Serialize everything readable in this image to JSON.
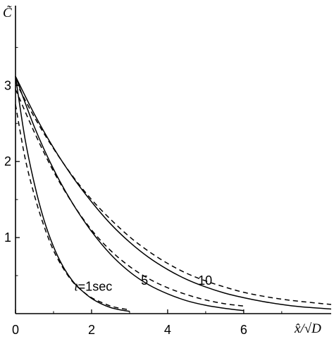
{
  "chart_data": {
    "type": "line",
    "ylabel": "C̃",
    "xlabel": "x̂/√D",
    "xlim": [
      0,
      8.3
    ],
    "ylim": [
      0,
      4.05
    ],
    "xticks": [
      0,
      2,
      4,
      6
    ],
    "xtick_labels": [
      "0",
      "2",
      "4",
      "6"
    ],
    "yticks": [
      1,
      2,
      3
    ],
    "ytick_labels": [
      "1",
      "2",
      "3"
    ],
    "grid": false,
    "legend": "none",
    "series": [
      {
        "style": "solid",
        "x": [
          0,
          0.25,
          0.5,
          0.75,
          1.0,
          1.25,
          1.5,
          1.75,
          2.0,
          2.25,
          2.5,
          2.75,
          3.0
        ],
        "y": [
          3.12,
          2.3,
          1.7,
          1.23,
          0.88,
          0.62,
          0.43,
          0.3,
          0.2,
          0.13,
          0.08,
          0.05,
          0.03
        ]
      },
      {
        "style": "dashed",
        "x": [
          0,
          0.25,
          0.5,
          0.75,
          1.0,
          1.25,
          1.5,
          1.75,
          2.0,
          2.25,
          2.5,
          2.75,
          3.0
        ],
        "y": [
          2.75,
          2.05,
          1.55,
          1.15,
          0.83,
          0.6,
          0.42,
          0.3,
          0.21,
          0.15,
          0.1,
          0.07,
          0.05
        ]
      },
      {
        "style": "solid",
        "x": [
          0,
          0.5,
          1.0,
          1.5,
          2.0,
          2.5,
          3.0,
          3.5,
          4.0,
          4.5,
          5.0,
          5.5,
          6.0
        ],
        "y": [
          3.12,
          2.45,
          1.9,
          1.45,
          1.08,
          0.78,
          0.55,
          0.38,
          0.26,
          0.17,
          0.11,
          0.07,
          0.04
        ]
      },
      {
        "style": "dashed",
        "x": [
          0,
          0.5,
          1.0,
          1.5,
          2.0,
          2.5,
          3.0,
          3.5,
          4.0,
          4.5,
          5.0,
          5.5,
          6.0
        ],
        "y": [
          2.95,
          2.38,
          1.87,
          1.45,
          1.1,
          0.83,
          0.62,
          0.46,
          0.34,
          0.25,
          0.18,
          0.13,
          0.1
        ]
      },
      {
        "style": "solid",
        "x": [
          0,
          0.5,
          1.0,
          1.5,
          2.0,
          2.5,
          3.0,
          3.5,
          4.0,
          4.5,
          5.0,
          5.5,
          6.0,
          6.5,
          7.0,
          7.5,
          8.3
        ],
        "y": [
          3.12,
          2.62,
          2.18,
          1.8,
          1.47,
          1.18,
          0.94,
          0.74,
          0.58,
          0.45,
          0.35,
          0.27,
          0.21,
          0.16,
          0.12,
          0.09,
          0.06
        ]
      },
      {
        "style": "dashed",
        "x": [
          0,
          0.5,
          1.0,
          1.5,
          2.0,
          2.5,
          3.0,
          3.5,
          4.0,
          4.5,
          5.0,
          5.5,
          6.0,
          6.5,
          7.0,
          7.5,
          8.3
        ],
        "y": [
          3.05,
          2.58,
          2.17,
          1.81,
          1.5,
          1.24,
          1.01,
          0.82,
          0.66,
          0.53,
          0.43,
          0.35,
          0.28,
          0.23,
          0.19,
          0.16,
          0.12
        ]
      }
    ],
    "annotations": [
      {
        "prefix": "t",
        "text": "=1sec",
        "x": 1.55,
        "y": 0.3
      },
      {
        "text": "5",
        "x": 3.3,
        "y": 0.38
      },
      {
        "text": "10",
        "x": 4.8,
        "y": 0.38
      }
    ]
  }
}
